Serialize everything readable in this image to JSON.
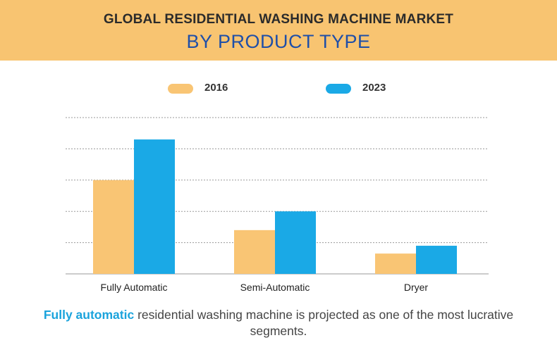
{
  "header": {
    "title_line1": "GLOBAL RESIDENTIAL WASHING MACHINE MARKET",
    "title_line2": "BY PRODUCT TYPE"
  },
  "colors": {
    "banner": "#f8c471",
    "series_2016": "#f9c574",
    "series_2023": "#1aa9e6",
    "highlight": "#1aa3dc"
  },
  "chart_data": {
    "type": "bar",
    "categories": [
      "Fully Automatic",
      "Semi-Automatic",
      "Dryer"
    ],
    "series": [
      {
        "name": "2016",
        "values": [
          3.0,
          1.4,
          0.65
        ]
      },
      {
        "name": "2023",
        "values": [
          4.3,
          2.0,
          0.9
        ]
      }
    ],
    "ylim": [
      0,
      5
    ],
    "grid": true,
    "legend": "top-center"
  },
  "footer": {
    "highlight": "Fully automatic",
    "rest": " residential washing machine is projected as one of the most lucrative segments."
  }
}
